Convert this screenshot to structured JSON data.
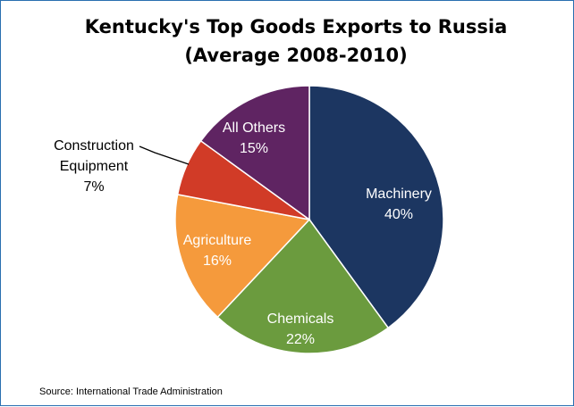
{
  "chart_data": {
    "type": "pie",
    "title_lines": [
      "Kentucky's Top Goods Exports to Russia",
      "(Average 2008-2010)"
    ],
    "slices": [
      {
        "name": "Machinery",
        "name_lines": [
          "Machinery"
        ],
        "value": 40,
        "value_label": "40%",
        "color": "#1c3661",
        "label_color": "#ffffff"
      },
      {
        "name": "Chemicals",
        "name_lines": [
          "Chemicals"
        ],
        "value": 22,
        "value_label": "22%",
        "color": "#6b9b3e",
        "label_color": "#ffffff"
      },
      {
        "name": "Agriculture",
        "name_lines": [
          "Agriculture"
        ],
        "value": 16,
        "value_label": "16%",
        "color": "#f59a3c",
        "label_color": "#ffffff"
      },
      {
        "name": "Construction Equipment",
        "name_lines": [
          "Construction",
          "Equipment"
        ],
        "value": 7,
        "value_label": "7%",
        "color": "#d13b27",
        "label_color": "#000000"
      },
      {
        "name": "All Others",
        "name_lines": [
          "All Others"
        ],
        "value": 15,
        "value_label": "15%",
        "color": "#5f2462",
        "label_color": "#ffffff"
      }
    ],
    "start_angle": "top",
    "direction": "clockwise",
    "source": "Source: International Trade Administration"
  }
}
